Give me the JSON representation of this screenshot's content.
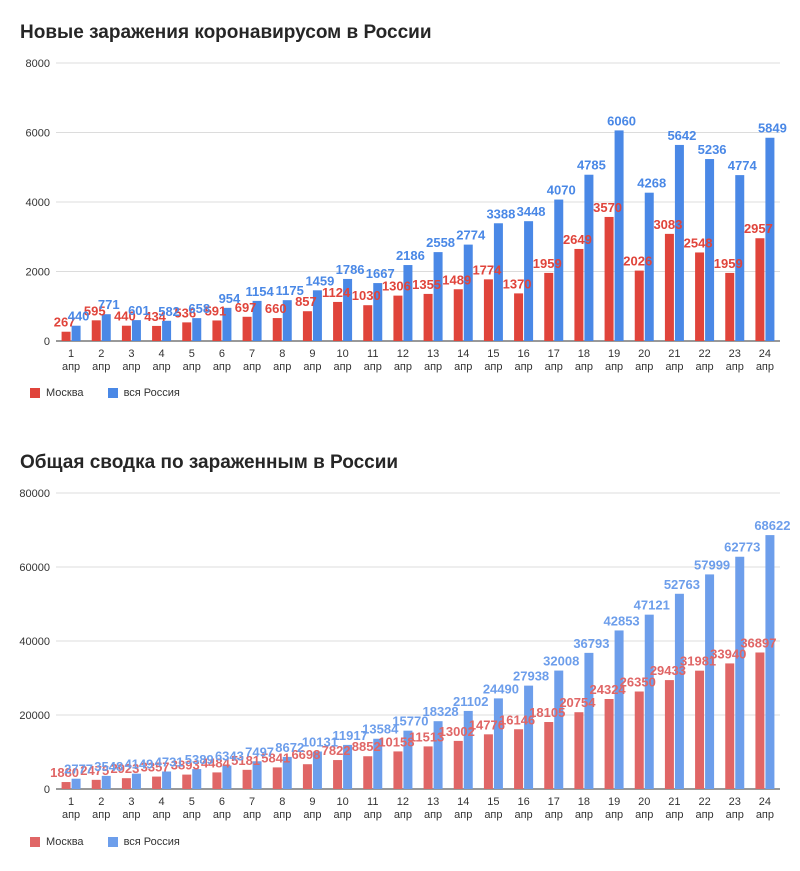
{
  "colors": {
    "moscow_1": "#e0443b",
    "russia_1": "#4a88e6",
    "moscow_2": "#e06666",
    "russia_2": "#6d9eeb"
  },
  "chart_data": [
    {
      "type": "bar",
      "title": "Новые заражения коронавирусом в России",
      "xlabel": "",
      "ylabel": "",
      "ylim": [
        0,
        8000
      ],
      "yticks": [
        "0",
        "2000",
        "4000",
        "6000",
        "8000"
      ],
      "categories": [
        "1 апр",
        "2 апр",
        "3 апр",
        "4 апр",
        "5 апр",
        "6 апр",
        "7 апр",
        "8 апр",
        "9 апр",
        "10 апр",
        "11 апр",
        "12 апр",
        "13 апр",
        "14 апр",
        "15 апр",
        "16 апр",
        "17 апр",
        "18 апр",
        "19 апр",
        "20 апр",
        "21 апр",
        "22 апр",
        "23 апр",
        "24 апр"
      ],
      "series": [
        {
          "name": "Москва",
          "values": [
            267,
            595,
            440,
            434,
            536,
            591,
            697,
            660,
            857,
            1124,
            1030,
            1306,
            1355,
            1489,
            1774,
            1370,
            1959,
            2649,
            3570,
            2026,
            3083,
            2548,
            1959,
            2957
          ]
        },
        {
          "name": "вся Россия",
          "values": [
            440,
            771,
            601,
            582,
            658,
            954,
            1154,
            1175,
            1459,
            1786,
            1667,
            2186,
            2558,
            2774,
            3388,
            3448,
            4070,
            4785,
            6060,
            4268,
            5642,
            5236,
            4774,
            5849
          ]
        }
      ],
      "legend": "bottom-left",
      "grid": true
    },
    {
      "type": "bar",
      "title": "Общая сводка по зараженным в России",
      "xlabel": "",
      "ylabel": "",
      "ylim": [
        0,
        80000
      ],
      "yticks": [
        "0",
        "20000",
        "40000",
        "60000",
        "80000"
      ],
      "categories": [
        "1 апр",
        "2 апр",
        "3 апр",
        "4 апр",
        "5 апр",
        "6 апр",
        "7 апр",
        "8 апр",
        "9 апр",
        "10 апр",
        "11 апр",
        "12 апр",
        "13 апр",
        "14 апр",
        "15 апр",
        "16 апр",
        "17 апр",
        "18 апр",
        "19 апр",
        "20 апр",
        "21 апр",
        "22 апр",
        "23 апр",
        "24 апр"
      ],
      "series": [
        {
          "name": "Москва",
          "values": [
            1880,
            2475,
            2923,
            3357,
            3893,
            4484,
            5181,
            5841,
            6698,
            7822,
            8852,
            10158,
            11513,
            13002,
            14776,
            16146,
            18105,
            20754,
            24324,
            26350,
            29433,
            31981,
            33940,
            36897
          ]
        },
        {
          "name": "вся Россия",
          "values": [
            2777,
            3548,
            4149,
            4731,
            5389,
            6343,
            7497,
            8672,
            10131,
            11917,
            13584,
            15770,
            18328,
            21102,
            24490,
            27938,
            32008,
            36793,
            42853,
            47121,
            52763,
            57999,
            62773,
            68622
          ]
        }
      ],
      "legend": "bottom-left",
      "grid": true
    }
  ]
}
